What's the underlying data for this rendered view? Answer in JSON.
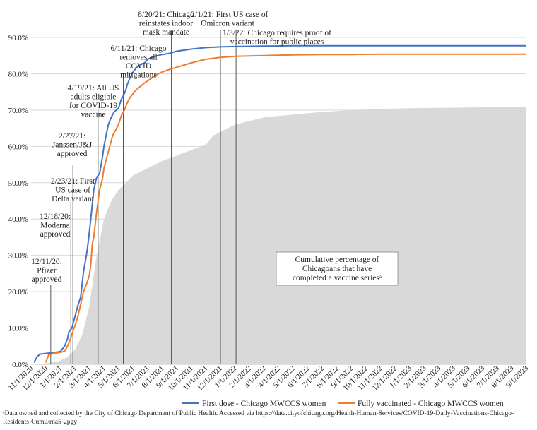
{
  "chart_data": {
    "type": "line",
    "title": "",
    "xlabel": "",
    "ylabel": "",
    "ylim": [
      0,
      90
    ],
    "yticks": [
      "0.0%",
      "10.0%",
      "20.0%",
      "30.0%",
      "40.0%",
      "50.0%",
      "60.0%",
      "70.0%",
      "80.0%",
      "90.0%"
    ],
    "x_tick_labels": [
      "11/1/2020",
      "12/1/2020",
      "1/1/2021",
      "2/1/2021",
      "3/1/2021",
      "4/1/2021",
      "5/1/2021",
      "6/1/2021",
      "7/1/2021",
      "8/1/2021",
      "9/1/2021",
      "10/1/2021",
      "11/1/2021",
      "12/1/2021",
      "1/1/2022",
      "2/1/2022",
      "3/1/2022",
      "4/1/2022",
      "5/1/2022",
      "6/1/2022",
      "7/1/2022",
      "8/1/2022",
      "9/1/2022",
      "10/1/2022",
      "11/1/2022",
      "12/1/2022",
      "1/1/2023",
      "2/1/2023",
      "3/1/2023",
      "4/1/2023",
      "5/1/2023",
      "6/1/2023",
      "7/1/2023",
      "8/1/2023",
      "9/1/2023"
    ],
    "grid": true,
    "legend": "bottom",
    "series": [
      {
        "name": "First dose - Chicago MWCCS women",
        "color": "#4472C4",
        "x": [
          0.2,
          0.4,
          0.6,
          1.0,
          1.5,
          2.0,
          2.3,
          2.5,
          2.6,
          2.8,
          3.0,
          3.2,
          3.4,
          3.5,
          3.6,
          3.8,
          3.9,
          4.0,
          4.1,
          4.2,
          4.3,
          4.5,
          4.7,
          4.9,
          5.0,
          5.1,
          5.3,
          5.5,
          5.7,
          6.0,
          6.2,
          6.4,
          6.5,
          6.6,
          6.8,
          7.0,
          7.2,
          7.5,
          7.8,
          8.0,
          8.3,
          8.5,
          9.0,
          9.5,
          10.0,
          11.0,
          12.0,
          13.0,
          14.0,
          16.0,
          18.0,
          20.0,
          22.0,
          24.0,
          26.0,
          28.0,
          30.0,
          32.0,
          34.0
        ],
        "y": [
          0.5,
          2.0,
          2.8,
          3.0,
          3.2,
          3.5,
          5.0,
          7.0,
          9.0,
          10.0,
          13.0,
          16.0,
          18.5,
          22.0,
          25.5,
          30.0,
          33.0,
          36.5,
          40.0,
          44.0,
          48.0,
          51.5,
          52.5,
          57.0,
          60.0,
          62.0,
          66.0,
          68.0,
          69.5,
          70.5,
          73.0,
          74.5,
          75.5,
          77.0,
          79.0,
          80.5,
          81.5,
          82.5,
          83.0,
          84.0,
          84.5,
          84.8,
          85.3,
          85.6,
          86.2,
          86.8,
          87.2,
          87.4,
          87.5,
          87.6,
          87.7,
          87.7,
          87.7,
          87.7,
          87.7,
          87.7,
          87.7,
          87.7,
          87.7
        ]
      },
      {
        "name": "Fully vaccinated - Chicago MWCCS women",
        "color": "#ED7D31",
        "x": [
          1.0,
          1.2,
          1.5,
          2.0,
          2.3,
          2.5,
          2.7,
          2.9,
          3.0,
          3.2,
          3.4,
          3.6,
          3.8,
          4.0,
          4.1,
          4.2,
          4.3,
          4.5,
          4.7,
          4.9,
          5.0,
          5.2,
          5.4,
          5.6,
          5.8,
          6.0,
          6.2,
          6.4,
          6.6,
          6.8,
          7.0,
          7.2,
          7.5,
          7.8,
          8.0,
          8.5,
          9.0,
          9.5,
          10.0,
          11.0,
          12.0,
          13.0,
          14.0,
          16.0,
          18.0,
          20.0,
          22.0,
          24.0,
          26.0,
          28.0,
          30.0,
          32.0,
          34.0
        ],
        "y": [
          0.5,
          2.5,
          3.0,
          3.3,
          3.6,
          5.0,
          7.0,
          9.5,
          10.5,
          13.0,
          16.5,
          20.0,
          22.0,
          24.5,
          27.5,
          33.0,
          35.0,
          42.0,
          48.0,
          51.0,
          54.0,
          57.0,
          60.0,
          63.0,
          64.5,
          66.0,
          68.5,
          70.0,
          72.0,
          73.5,
          74.5,
          75.5,
          76.5,
          77.5,
          78.0,
          79.5,
          80.5,
          81.2,
          81.8,
          83.0,
          84.0,
          84.5,
          84.8,
          85.0,
          85.2,
          85.3,
          85.3,
          85.4,
          85.4,
          85.4,
          85.4,
          85.4,
          85.4
        ]
      },
      {
        "name": "Cumulative percentage of Chicagoans that have completed a vaccine series",
        "color": "#D9D9D9",
        "x": [
          0,
          1.0,
          1.5,
          2.0,
          2.5,
          3.0,
          3.5,
          4.0,
          4.5,
          5.0,
          5.5,
          6.0,
          6.5,
          7.0,
          7.5,
          8.0,
          9.0,
          10.0,
          11.0,
          12.0,
          12.5,
          13.0,
          14.0,
          15.0,
          16.0,
          18.0,
          20.0,
          22.0,
          24.0,
          26.0,
          28.0,
          30.0,
          32.0,
          34.0
        ],
        "y": [
          0,
          0.3,
          0.5,
          1.0,
          2.0,
          4.0,
          8.0,
          16.0,
          30.0,
          40.0,
          45.0,
          48.0,
          50.0,
          52.0,
          53.0,
          54.0,
          56.0,
          57.5,
          59.0,
          60.5,
          63.0,
          64.0,
          66.0,
          67.0,
          68.0,
          68.8,
          69.5,
          70.0,
          70.3,
          70.5,
          70.6,
          70.7,
          70.8,
          70.9
        ]
      }
    ],
    "annotations": [
      {
        "x": 1.35,
        "top_pct": 22,
        "lines": [
          "12/11/20:",
          "Pfizer",
          "approved"
        ]
      },
      {
        "x": 1.58,
        "top_pct": 30,
        "lines": [
          "12/18/20:",
          "Moderna",
          "approved"
        ]
      },
      {
        "x": 2.73,
        "top_pct": 45,
        "lines": [
          "2/23/21: First",
          "US case of",
          "Delta variant"
        ]
      },
      {
        "x": 2.87,
        "top_pct": 55,
        "lines": [
          "2/27/21:",
          "Janssen/J&J",
          "approved"
        ]
      },
      {
        "x": 4.6,
        "top_pct": 70,
        "lines": [
          "4/19/21: All US",
          "adults eligible",
          "for COVID-19",
          "vaccine"
        ]
      },
      {
        "x": 6.33,
        "top_pct": 80,
        "lines": [
          "6/11/21: Chicago",
          "removes all",
          "COVID",
          "mitigations"
        ]
      },
      {
        "x": 9.63,
        "top_pct": 92,
        "lines": [
          "8/20/21: Chicago",
          "reinstates indoor",
          "mask mandate"
        ]
      },
      {
        "x": 13.0,
        "top_pct": 92,
        "lines": [
          "12/1/21: First US case of",
          "Omicron variant"
        ]
      },
      {
        "x": 14.07,
        "top_pct": 92,
        "lines": [
          "1/3/22: Chicago requires proof of",
          "vaccination for public places"
        ]
      }
    ],
    "area_label": [
      "Cumulative percentage of",
      "Chicagoans that have",
      "completed a vaccine seriesᵃ"
    ]
  },
  "footnote": "ᵃData owned and collected by the City of Chicago Department of Public Health. Accessed via https://data.cityofchicago.org/Health-Human-Services/COVID-19-Daily-Vaccinations-Chicago-Residents-Cumu/rna5-2pgy"
}
